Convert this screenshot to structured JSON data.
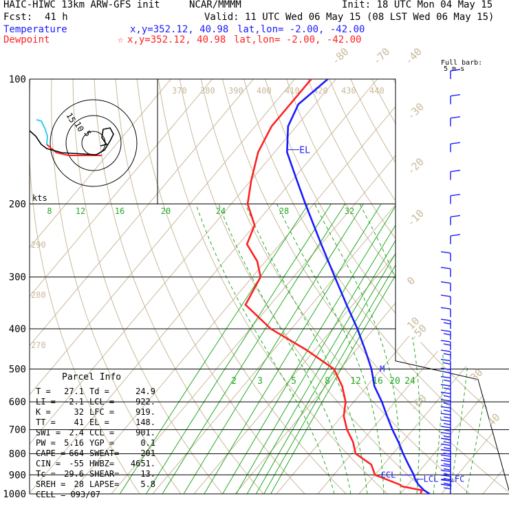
{
  "header": {
    "model": "HAIC-HIWC 13km ARW-GFS init",
    "org": "NCAR/MMMM",
    "init": "Init: 18 UTC Mon 04 May 15",
    "fcst_label": "Fcst:",
    "fcst_value": "41 h",
    "valid": "Valid: 11 UTC Wed 06 May 15 (08 LST Wed 06 May 15)",
    "temp_label": "Temperature",
    "temp_xy": "x,y=352.12, 40.98",
    "temp_latlon": "lat,lon= -2.00, -42.00",
    "dew_label": "Dewpoint",
    "dew_xy": "x,y=352.12, 40.98",
    "dew_latlon": "lat,lon= -2.00, -42.00",
    "barb_title": "Full barb:",
    "barb_units": "5 m s"
  },
  "chart_data": {
    "type": "line",
    "title": "Skew-T log-P diagram",
    "pressure_levels": [
      100,
      200,
      300,
      400,
      500,
      600,
      700,
      800,
      900,
      1000
    ],
    "temperature_ticks": [
      -80,
      -70,
      -60,
      -50,
      -40,
      -30,
      -20,
      -10,
      0,
      10,
      20,
      30,
      40
    ],
    "theta_ticks": [
      370,
      380,
      390,
      400,
      410,
      420,
      430,
      440
    ],
    "theta_left_labels": [
      290,
      280,
      270
    ],
    "mixing_ratio_upper": [
      8,
      12,
      16,
      20,
      24,
      28,
      32
    ],
    "mixing_ratio_lower": [
      2,
      3,
      5,
      8,
      12,
      16,
      20,
      24
    ],
    "series": [
      {
        "name": "Temperature",
        "color": "#1a1aff",
        "p": [
          1000,
          980,
          950,
          920,
          900,
          850,
          800,
          750,
          700,
          650,
          600,
          550,
          500,
          450,
          400,
          350,
          300,
          250,
          200,
          175,
          150,
          130,
          115,
          100
        ],
        "t": [
          27.1,
          25,
          22.5,
          20.5,
          19.4,
          16.0,
          12.5,
          9.0,
          5.0,
          1.0,
          -3.2,
          -8.2,
          -12.4,
          -17.8,
          -24.0,
          -31.5,
          -40.0,
          -50.0,
          -62.0,
          -69.0,
          -77.0,
          -82.0,
          -84.0,
          -82.0
        ]
      },
      {
        "name": "Dewpoint",
        "color": "#ff2020",
        "p": [
          1000,
          980,
          960,
          950,
          900,
          850,
          800,
          750,
          700,
          650,
          600,
          550,
          500,
          450,
          400,
          350,
          300,
          275,
          250,
          225,
          200,
          175,
          150,
          130,
          100
        ],
        "t": [
          24.9,
          24.5,
          19,
          18,
          10,
          7,
          1,
          -2,
          -6,
          -9.5,
          -12,
          -16,
          -21.5,
          -32,
          -45,
          -56,
          -58,
          -62,
          -68,
          -70,
          -76,
          -80,
          -84,
          -86,
          -86
        ]
      }
    ],
    "annotations": {
      "el": "EL",
      "el_p": 148,
      "ccl": "CCL",
      "ccl_p": 901,
      "lcl": "LCL",
      "lfc": "LFC",
      "lcl_p": 922,
      "m_marker": "M",
      "m_p": 500
    },
    "wind_barbs_levels": [
      100,
      115,
      130,
      150,
      175,
      200,
      225,
      250,
      275,
      300,
      325,
      350,
      375,
      400,
      425,
      450,
      475,
      500,
      525,
      550,
      575,
      600,
      625,
      650,
      675,
      700,
      725,
      750,
      775,
      800,
      825,
      850,
      875,
      900,
      925,
      950,
      975,
      1000
    ],
    "hodograph": {
      "ring_labels": [
        "15",
        "10",
        "5"
      ],
      "units": "kts"
    }
  },
  "parcel_info": {
    "title": "Parcel Info",
    "rows": [
      [
        "T   =",
        "27.1",
        "Td  =",
        "24.9"
      ],
      [
        "LI  =",
        "-2.1",
        "LCL =",
        "922."
      ],
      [
        "K   =",
        "32",
        "LFC =",
        "919."
      ],
      [
        "TT  =",
        "41",
        "EL  =",
        "148."
      ],
      [
        "SWI =",
        "2.4",
        "CCL =",
        "901."
      ],
      [
        "PW  =",
        "5.16",
        "YGP =",
        "0.1"
      ],
      [
        "CAPE =",
        "664",
        "SWEAT=",
        "201"
      ],
      [
        "CIN =",
        "-55",
        "HWBZ=",
        "4651."
      ],
      [
        "Tc  =",
        "29.6",
        "SHEAR=",
        "13."
      ],
      [
        "SREH =",
        "28",
        "LAPSE=",
        "5.8"
      ],
      [
        "CELL = 093/07",
        "",
        "",
        ""
      ]
    ]
  }
}
